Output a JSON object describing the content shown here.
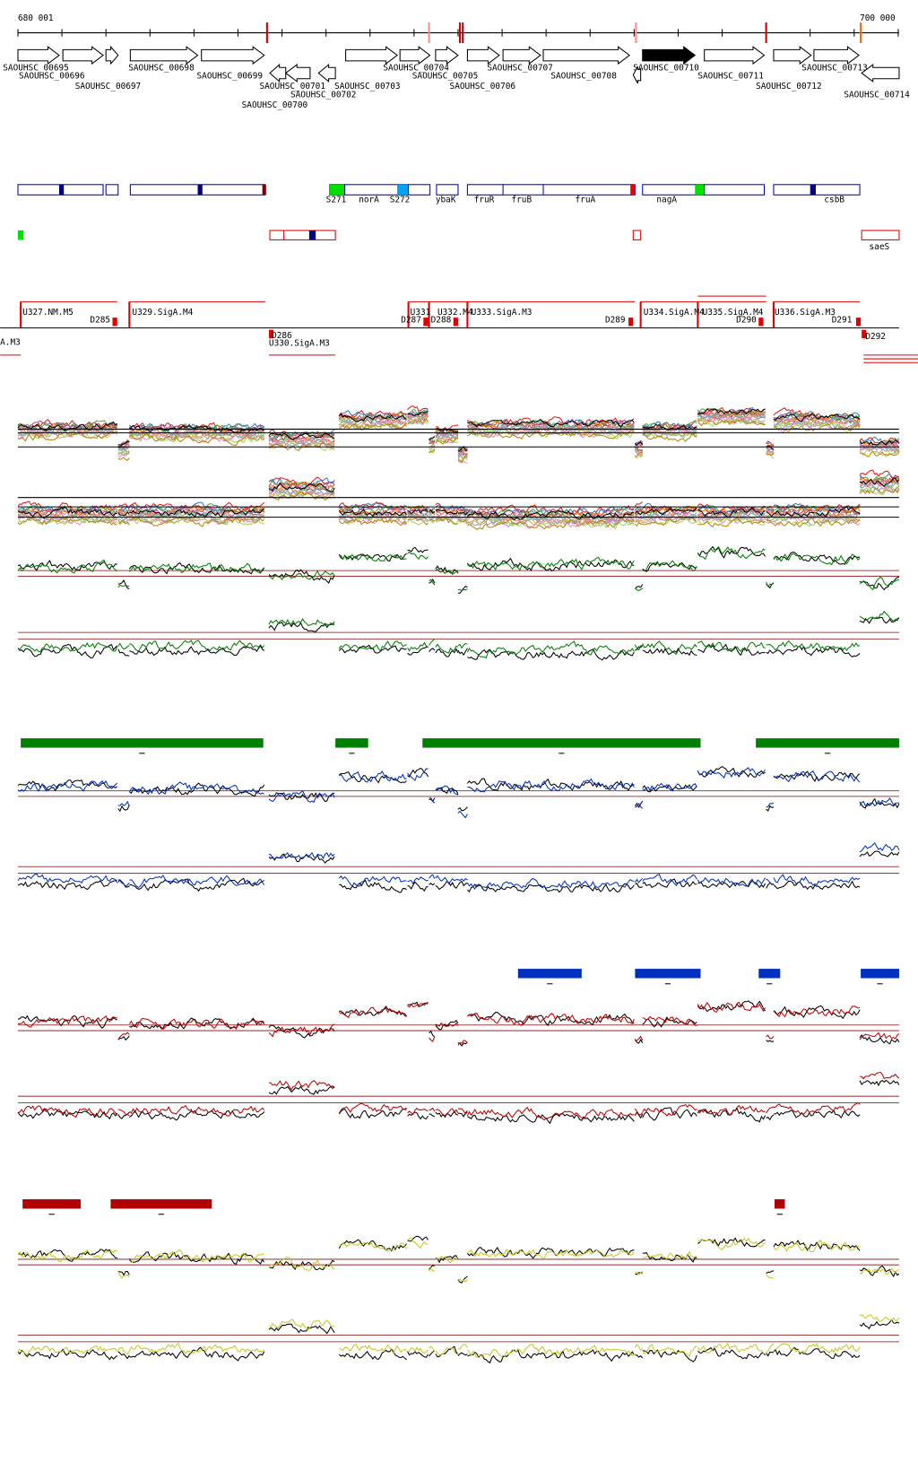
{
  "ruler": {
    "start_label": "680 001",
    "end_label": "700 000"
  },
  "genes": [
    "SAOUHSC_00695",
    "SAOUHSC_00696",
    "SAOUHSC_00697",
    "SAOUHSC_00698",
    "SAOUHSC_00699",
    "SAOUHSC_00700",
    "SAOUHSC_00701",
    "SAOUHSC_00702",
    "SAOUHSC_00703",
    "SAOUHSC_00704",
    "SAOUHSC_00705",
    "SAOUHSC_00706",
    "SAOUHSC_00707",
    "SAOUHSC_00708",
    "SAOUHSC_00710",
    "SAOUHSC_00711",
    "SAOUHSC_00712",
    "SAOUHSC_00713",
    "SAOUHSC_00714"
  ],
  "features": [
    "S271",
    "norA",
    "S272",
    "ybaK",
    "fruR",
    "fruB",
    "fruA",
    "nagA",
    "csbB",
    "saeS"
  ],
  "segments": [
    "U327.NM.M5",
    "D285",
    "U329.SigA.M4",
    "A.M3",
    "D286",
    "U330.SigA.M3",
    "U331",
    "D287",
    "D288",
    "U332.M4",
    "U333.SigA.M3",
    "D289",
    "U334.SigA.M4",
    "U335.SigA.M4",
    "D290",
    "U336.SigA.M3",
    "D291",
    "D292"
  ]
}
